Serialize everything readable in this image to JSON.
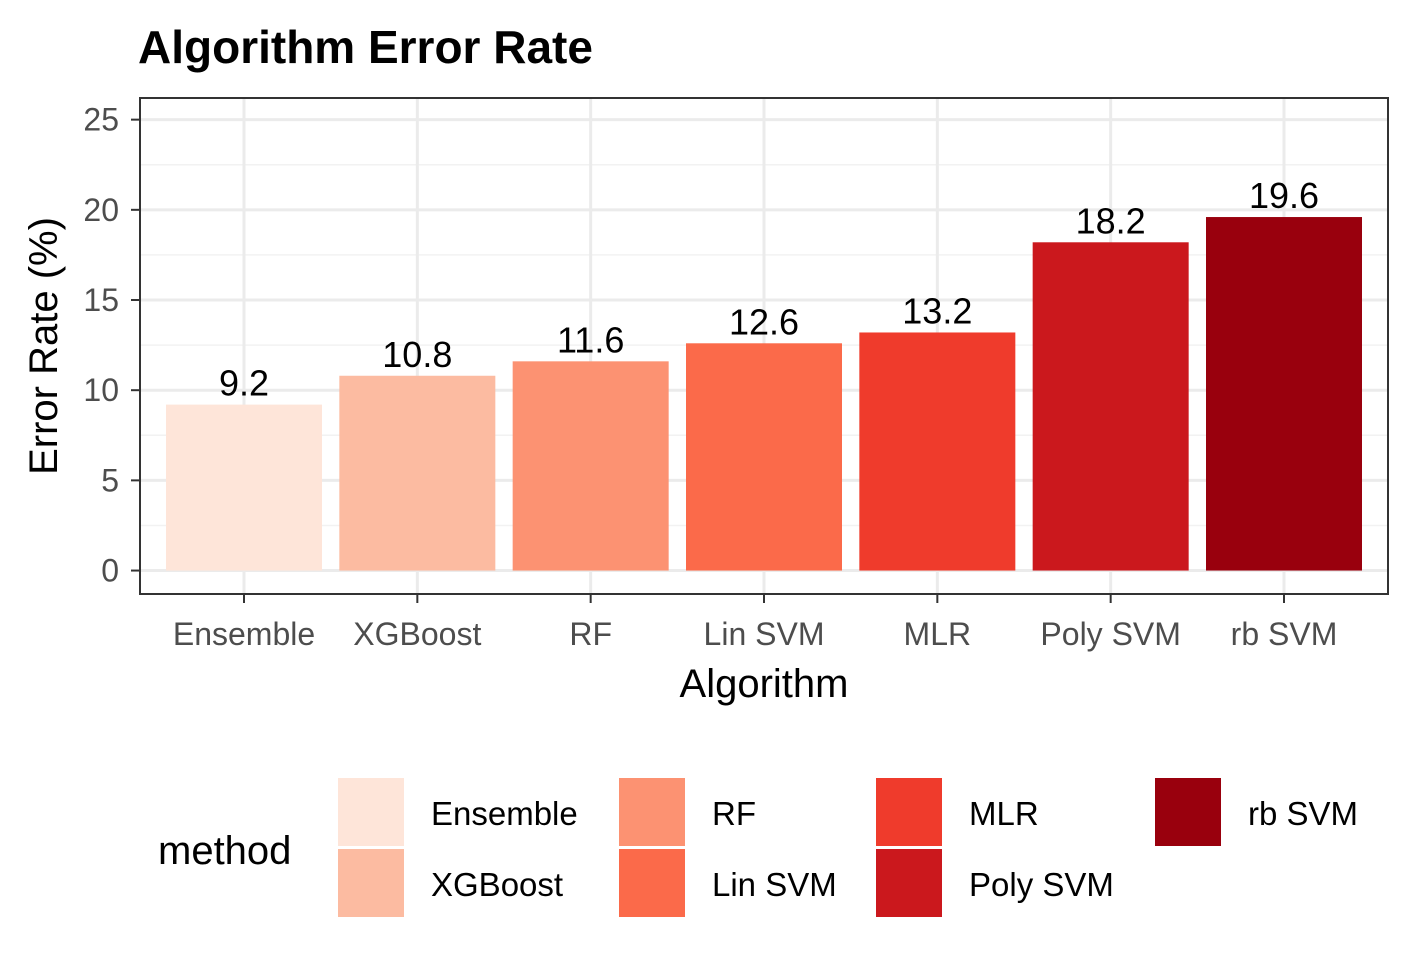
{
  "chart_data": {
    "type": "bar",
    "title": "Algorithm Error Rate",
    "xlabel": "Algorithm",
    "ylabel": "Error Rate (%)",
    "ylim": [
      -1.3,
      26.2
    ],
    "yticks": [
      0,
      5,
      10,
      15,
      20,
      25
    ],
    "grid": true,
    "categories": [
      "Ensemble",
      "XGBoost",
      "RF",
      "Lin SVM",
      "MLR",
      "Poly SVM",
      "rb SVM"
    ],
    "values": [
      9.2,
      10.8,
      11.6,
      12.6,
      13.2,
      18.2,
      19.6
    ],
    "data_labels": [
      "9.2",
      "10.8",
      "11.6",
      "12.6",
      "13.2",
      "18.2",
      "19.6"
    ],
    "colors": [
      "#fee5d9",
      "#fcbba1",
      "#fc9272",
      "#fb6a4a",
      "#ef3b2c",
      "#cb181d",
      "#99000d"
    ],
    "legend": {
      "title": "method",
      "placement": "bottom",
      "entries": [
        "Ensemble",
        "XGBoost",
        "RF",
        "Lin SVM",
        "MLR",
        "Poly SVM",
        "rb SVM"
      ]
    }
  }
}
